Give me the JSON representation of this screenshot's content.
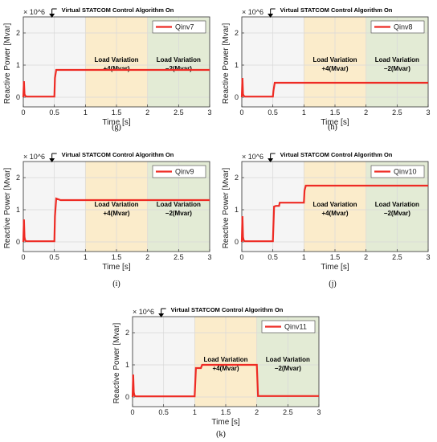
{
  "chart_data": [
    {
      "type": "line",
      "panel_label": "(g)",
      "annotation": "Virtual STATCOM Control Algorithm On",
      "xlabel": "Time [s]",
      "ylabel": "Reactive Power [Mvar]",
      "y_exponent": "× 10^6",
      "xlim": [
        0,
        3
      ],
      "ylim": [
        -0.3,
        2.5
      ],
      "xticks": [
        "0",
        "0.5",
        "1",
        "1.5",
        "2",
        "2.5",
        "3"
      ],
      "yticks": [
        "0",
        "1",
        "2"
      ],
      "grid": true,
      "legend_position": "top-right",
      "regions": [
        {
          "x0": 1,
          "x1": 2,
          "label_line1": "Load Variation",
          "label_line2": "+4(Mvar)",
          "color": "#fbeccb"
        },
        {
          "x0": 2,
          "x1": 3,
          "label_line1": "Load Variation",
          "label_line2": "−2(Mvar)",
          "color": "#e3ebd5"
        }
      ],
      "series": [
        {
          "name": "Qinv7",
          "color": "#ee2b24",
          "x": [
            0,
            0.01,
            0.02,
            0.03,
            0.05,
            0.5,
            0.51,
            0.53,
            1.0,
            1.5,
            2.0,
            2.5,
            3.0
          ],
          "y": [
            0,
            0.5,
            0.1,
            0.05,
            0.02,
            0.02,
            0.6,
            0.85,
            0.85,
            0.85,
            0.85,
            0.85,
            0.85
          ]
        }
      ]
    },
    {
      "type": "line",
      "panel_label": "(h)",
      "annotation": "Virtual STATCOM Control Algorithm On",
      "xlabel": "Time [s]",
      "ylabel": "Reactive Power [Mvar]",
      "y_exponent": "× 10^6",
      "xlim": [
        0,
        3
      ],
      "ylim": [
        -0.3,
        2.5
      ],
      "xticks": [
        "0",
        "0.5",
        "1",
        "1.5",
        "2",
        "2.5",
        "3"
      ],
      "yticks": [
        "0",
        "1",
        "2"
      ],
      "grid": true,
      "legend_position": "top-right",
      "regions": [
        {
          "x0": 1,
          "x1": 2,
          "label_line1": "Load Variation",
          "label_line2": "+4(Mvar)",
          "color": "#fbeccb"
        },
        {
          "x0": 2,
          "x1": 3,
          "label_line1": "Load Variation",
          "label_line2": "−2(Mvar)",
          "color": "#e3ebd5"
        }
      ],
      "series": [
        {
          "name": "Qinv8",
          "color": "#ee2b24",
          "x": [
            0,
            0.01,
            0.02,
            0.03,
            0.05,
            0.5,
            0.51,
            0.53,
            1.0,
            1.5,
            2.0,
            2.5,
            3.0
          ],
          "y": [
            0,
            0.6,
            0.1,
            0.05,
            0.02,
            0.02,
            0.2,
            0.45,
            0.45,
            0.45,
            0.45,
            0.45,
            0.45
          ]
        }
      ]
    },
    {
      "type": "line",
      "panel_label": "(i)",
      "annotation": "Virtual STATCOM Control Algorithm On",
      "xlabel": "Time [s]",
      "ylabel": "Reactive Power [Mvar]",
      "y_exponent": "× 10^6",
      "xlim": [
        0,
        3
      ],
      "ylim": [
        -0.3,
        2.5
      ],
      "xticks": [
        "0",
        "0.5",
        "1",
        "1.5",
        "2",
        "2.5",
        "3"
      ],
      "yticks": [
        "0",
        "1",
        "2"
      ],
      "grid": true,
      "legend_position": "top-right",
      "regions": [
        {
          "x0": 1,
          "x1": 2,
          "label_line1": "Load Variation",
          "label_line2": "+4(Mvar)",
          "color": "#fbeccb"
        },
        {
          "x0": 2,
          "x1": 3,
          "label_line1": "Load Variation",
          "label_line2": "−2(Mvar)",
          "color": "#e3ebd5"
        }
      ],
      "series": [
        {
          "name": "Qinv9",
          "color": "#ee2b24",
          "x": [
            0,
            0.01,
            0.02,
            0.03,
            0.05,
            0.5,
            0.51,
            0.53,
            0.6,
            1.0,
            1.5,
            2.0,
            2.5,
            3.0
          ],
          "y": [
            0,
            0.7,
            0.15,
            0.05,
            0.02,
            0.02,
            0.8,
            1.35,
            1.3,
            1.3,
            1.3,
            1.3,
            1.3,
            1.3
          ]
        }
      ]
    },
    {
      "type": "line",
      "panel_label": "(j)",
      "annotation": "Virtual STATCOM Control Algorithm On",
      "xlabel": "Time [s]",
      "ylabel": "Reactive Power [Mvar]",
      "y_exponent": "× 10^6",
      "xlim": [
        0,
        3
      ],
      "ylim": [
        -0.3,
        2.5
      ],
      "xticks": [
        "0",
        "0.5",
        "1",
        "1.5",
        "2",
        "2.5",
        "3"
      ],
      "yticks": [
        "0",
        "1",
        "2"
      ],
      "grid": true,
      "legend_position": "top-right",
      "regions": [
        {
          "x0": 1,
          "x1": 2,
          "label_line1": "Load Variation",
          "label_line2": "+4(Mvar)",
          "color": "#fbeccb"
        },
        {
          "x0": 2,
          "x1": 3,
          "label_line1": "Load Variation",
          "label_line2": "−2(Mvar)",
          "color": "#e3ebd5"
        }
      ],
      "series": [
        {
          "name": "Qinv10",
          "color": "#ee2b24",
          "x": [
            0,
            0.01,
            0.02,
            0.03,
            0.05,
            0.5,
            0.52,
            0.55,
            0.6,
            0.61,
            1.0,
            1.01,
            1.03,
            1.5,
            2.0,
            2.5,
            3.0
          ],
          "y": [
            0,
            0.8,
            0.15,
            0.05,
            0.02,
            0.02,
            1.1,
            1.12,
            1.12,
            1.22,
            1.22,
            1.6,
            1.75,
            1.75,
            1.75,
            1.75,
            1.75
          ]
        }
      ]
    },
    {
      "type": "line",
      "panel_label": "(k)",
      "annotation": "Virtual STATCOM Control Algorithm On",
      "xlabel": "Time [s]",
      "ylabel": "Reactive Power [Mvar]",
      "y_exponent": "× 10^6",
      "xlim": [
        0,
        3
      ],
      "ylim": [
        -0.3,
        2.5
      ],
      "xticks": [
        "0",
        "0.5",
        "1",
        "1.5",
        "2",
        "2.5",
        "3"
      ],
      "yticks": [
        "0",
        "1",
        "2"
      ],
      "grid": true,
      "legend_position": "top-right",
      "regions": [
        {
          "x0": 1,
          "x1": 2,
          "label_line1": "Load Variation",
          "label_line2": "+4(Mvar)",
          "color": "#fbeccb"
        },
        {
          "x0": 2,
          "x1": 3,
          "label_line1": "Load Variation",
          "label_line2": "−2(Mvar)",
          "color": "#e3ebd5"
        }
      ],
      "series": [
        {
          "name": "Qinv11",
          "color": "#ee2b24",
          "x": [
            0,
            0.01,
            0.02,
            0.03,
            0.05,
            1.0,
            1.02,
            1.05,
            1.1,
            1.12,
            1.5,
            2.0,
            2.02,
            2.5,
            3.0
          ],
          "y": [
            0,
            0.7,
            0.15,
            0.05,
            0.02,
            0.02,
            0.9,
            0.9,
            0.9,
            1.0,
            1.0,
            1.0,
            0.03,
            0.03,
            0.03
          ]
        }
      ]
    }
  ]
}
